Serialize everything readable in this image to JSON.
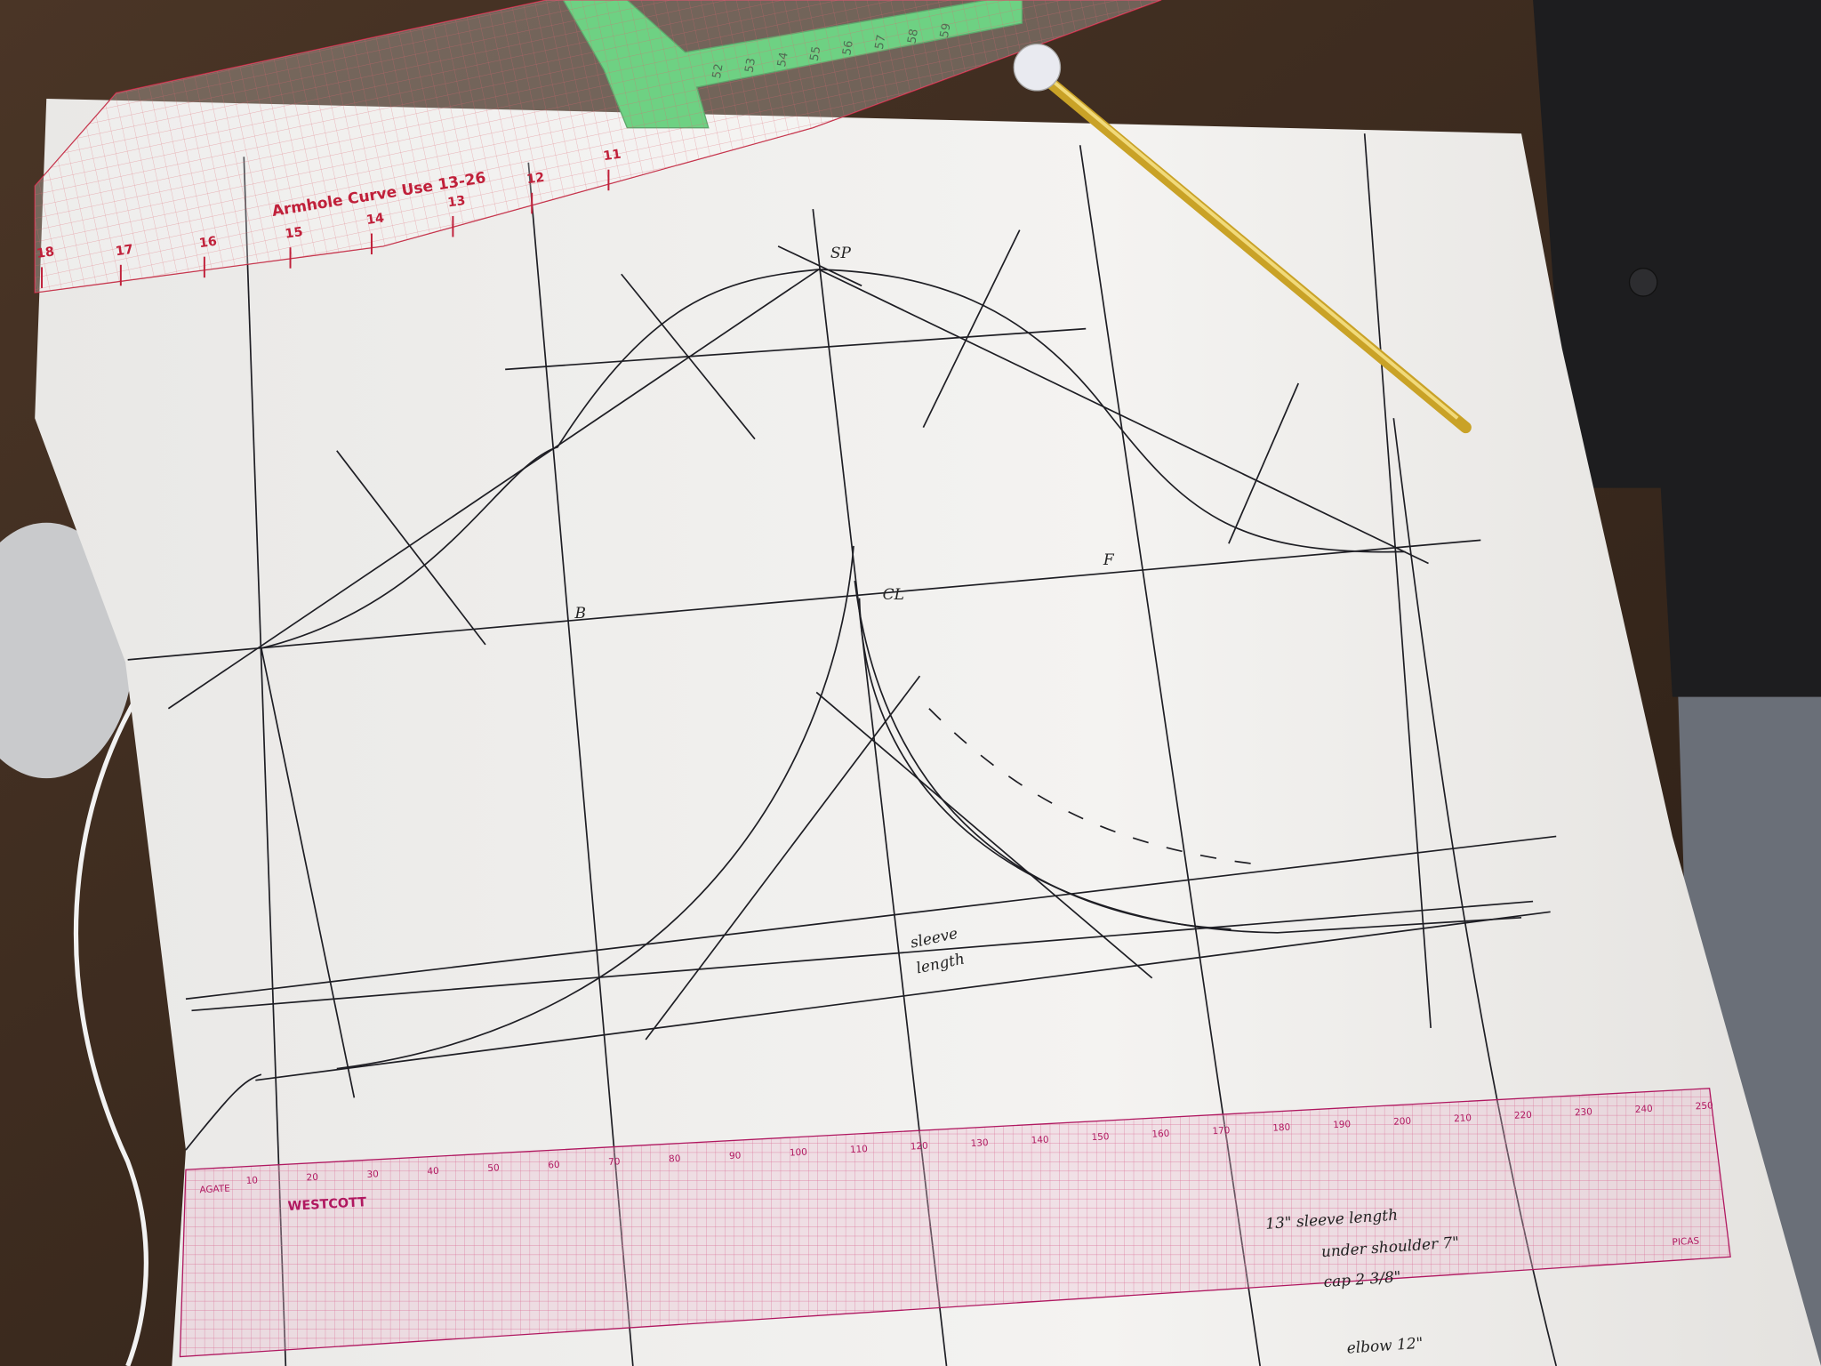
{
  "armhole_ruler": {
    "label": "Armhole Curve Use 13-26",
    "numbers": [
      "18",
      "17",
      "16",
      "15",
      "14",
      "13",
      "12",
      "11"
    ]
  },
  "tape_measure": {
    "numbers": [
      "52",
      "53",
      "54",
      "55",
      "56",
      "57",
      "58",
      "59"
    ]
  },
  "straight_ruler": {
    "brand": "WESTCOTT",
    "scale": "AGATE",
    "units": "PICAS",
    "numbers": [
      "10",
      "20",
      "30",
      "40",
      "50",
      "60",
      "70",
      "80",
      "90",
      "100",
      "110",
      "120",
      "130",
      "140",
      "150",
      "160",
      "170",
      "180",
      "190",
      "200",
      "210",
      "220",
      "230",
      "240",
      "250"
    ]
  },
  "labels": {
    "shoulder_point": "SP",
    "back": "B",
    "cap_line": "CL",
    "front": "F",
    "sleeve": "sleeve",
    "length": "length"
  },
  "notes": [
    "13\" sleeve length",
    "under shoulder 7\"",
    "cap 2 3/8\"",
    "elbow 12\""
  ]
}
